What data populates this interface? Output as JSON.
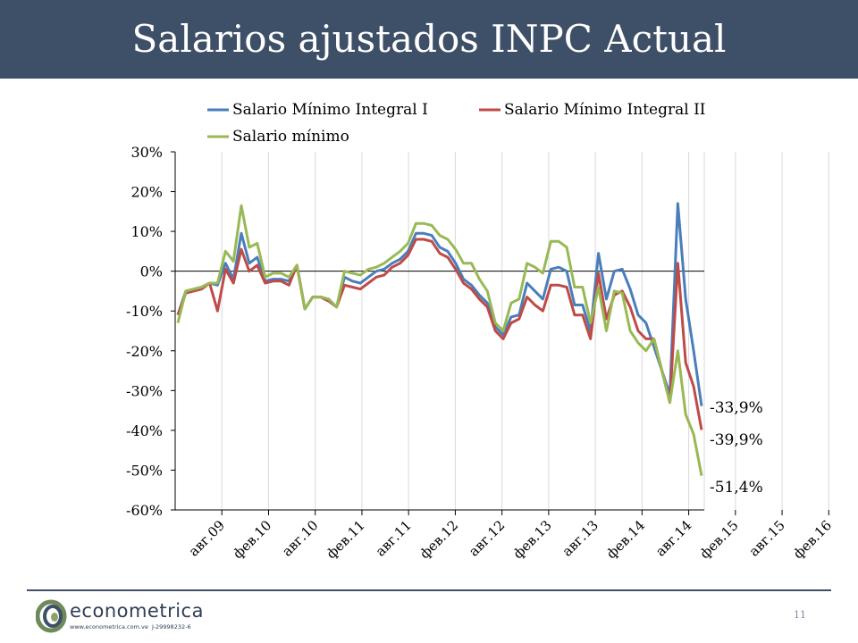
{
  "slide": {
    "title": "Salarios ajustados INPC Actual",
    "page_number": "11"
  },
  "footer": {
    "logo_name": "econometrica",
    "logo_url": "www.econometrica.com.ve",
    "logo_rif": "J-29998232-6"
  },
  "colors": {
    "title_bar": "#3e5068",
    "series_1": "#4a7ebb",
    "series_2": "#be4b48",
    "series_3": "#98b954",
    "gridline": "#d9d9d9",
    "axis": "#000000"
  },
  "chart_data": {
    "type": "line",
    "title": "",
    "xlabel": "",
    "ylabel": "",
    "ylim": [
      -60,
      30
    ],
    "yticks": [
      "30%",
      "20%",
      "10%",
      "0%",
      "-10%",
      "-20%",
      "-30%",
      "-40%",
      "-50%",
      "-60%"
    ],
    "ytick_values": [
      30,
      20,
      10,
      0,
      -10,
      -20,
      -30,
      -40,
      -50,
      -60
    ],
    "x_tick_labels": [
      "авг.09",
      "фев.10",
      "авг.10",
      "фев.11",
      "авг.11",
      "фев.12",
      "авг.12",
      "фев.13",
      "авг.13",
      "фев.14",
      "авг.14",
      "фев.15",
      "авг.15",
      "фев.16"
    ],
    "grid": true,
    "legend_position": "top",
    "end_labels": [
      "-33,9%",
      "-39,9%",
      "-51,4%"
    ],
    "series": [
      {
        "name": "Salario Mínimo Integral I",
        "color": "#4a7ebb",
        "values": [
          -11,
          -5,
          -4.5,
          -4,
          -3,
          -3.5,
          2,
          -2,
          9.5,
          2,
          3.5,
          -2.5,
          -2,
          -2,
          -2.5,
          1.5,
          -9.5,
          -6.5,
          -6.5,
          -7,
          -9,
          -1.5,
          -2.5,
          -3,
          -1.5,
          0,
          0.5,
          2,
          3,
          5,
          9.5,
          9.5,
          9,
          6,
          5,
          2,
          -2,
          -3.5,
          -6,
          -8,
          -14,
          -16,
          -11.5,
          -11,
          -3,
          -5,
          -7,
          0.5,
          1,
          0,
          -8.5,
          -8.5,
          -15,
          4.5,
          -7,
          0,
          0.5,
          -4.5,
          -11,
          -13,
          -19,
          -25,
          -31,
          17,
          -7,
          -20,
          -33.9
        ]
      },
      {
        "name": "Salario Mínimo Integral II",
        "color": "#be4b48",
        "values": [
          -11,
          -5.5,
          -5,
          -4.5,
          -3,
          -10,
          0.5,
          -3,
          5.5,
          0,
          1.5,
          -3,
          -2.5,
          -2.5,
          -3.5,
          1.5,
          -9.5,
          -6.5,
          -6.5,
          -7.5,
          -9,
          -3.5,
          -4,
          -4.5,
          -3,
          -1.5,
          -1,
          1,
          2,
          4,
          8,
          8,
          7.5,
          4.5,
          3.5,
          0.5,
          -3,
          -4.5,
          -7,
          -9,
          -15,
          -17,
          -13,
          -12,
          -6.5,
          -8.5,
          -10,
          -3.5,
          -3.5,
          -4,
          -11,
          -11,
          -17,
          -0.5,
          -12,
          -6,
          -5,
          -9,
          -15,
          -17,
          -17,
          -25,
          -33,
          2,
          -23,
          -29,
          -39.9
        ]
      },
      {
        "name": "Salario mínimo",
        "color": "#98b954",
        "values": [
          -13,
          -5,
          -4.5,
          -4,
          -3,
          -3,
          5,
          2.5,
          16.5,
          6,
          7,
          -1.5,
          -0.5,
          -0.5,
          -1.5,
          1.5,
          -9.5,
          -6.5,
          -6.5,
          -7,
          -9,
          0,
          -0.5,
          -1,
          0.5,
          1,
          2,
          3.5,
          5,
          7,
          12,
          12,
          11.5,
          9,
          8,
          5.5,
          2,
          2,
          -2,
          -5,
          -13,
          -15,
          -8,
          -7,
          2,
          1,
          -0.5,
          7.5,
          7.5,
          6,
          -4,
          -4,
          -13,
          -4,
          -15,
          -5,
          -5.5,
          -15,
          -18,
          -20,
          -17,
          -25,
          -33,
          -20,
          -36,
          -41,
          -51.4
        ]
      }
    ]
  }
}
